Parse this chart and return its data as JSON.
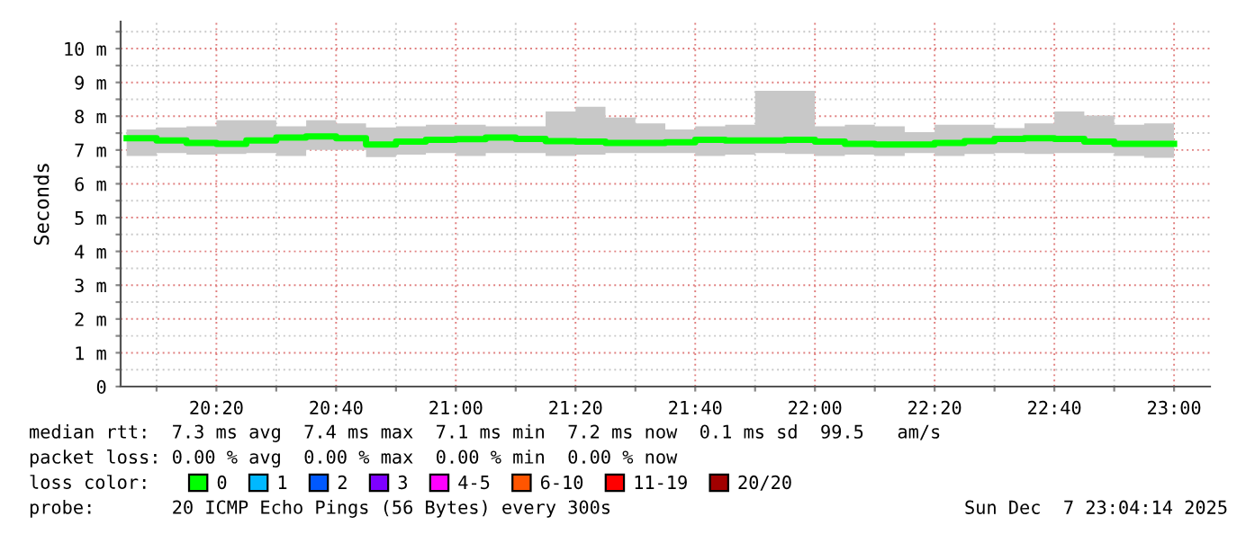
{
  "chart_data": {
    "type": "step",
    "ylabel": "Seconds",
    "legend_title": "loss color:",
    "x": [
      "2025-12-07T20:05",
      "2025-12-07T20:10",
      "2025-12-07T20:15",
      "2025-12-07T20:20",
      "2025-12-07T20:25",
      "2025-12-07T20:30",
      "2025-12-07T20:35",
      "2025-12-07T20:40",
      "2025-12-07T20:45",
      "2025-12-07T20:50",
      "2025-12-07T20:55",
      "2025-12-07T21:00",
      "2025-12-07T21:05",
      "2025-12-07T21:10",
      "2025-12-07T21:15",
      "2025-12-07T21:20",
      "2025-12-07T21:25",
      "2025-12-07T21:30",
      "2025-12-07T21:35",
      "2025-12-07T21:40",
      "2025-12-07T21:45",
      "2025-12-07T21:50",
      "2025-12-07T21:55",
      "2025-12-07T22:00",
      "2025-12-07T22:05",
      "2025-12-07T22:10",
      "2025-12-07T22:15",
      "2025-12-07T22:20",
      "2025-12-07T22:25",
      "2025-12-07T22:30",
      "2025-12-07T22:35",
      "2025-12-07T22:40",
      "2025-12-07T22:45",
      "2025-12-07T22:50",
      "2025-12-07T22:55",
      "2025-12-07T23:00"
    ],
    "series": [
      {
        "name": "0",
        "color": "#00ff00",
        "values": [
          7.35,
          7.28,
          7.21,
          7.18,
          7.28,
          7.37,
          7.4,
          7.35,
          7.16,
          7.25,
          7.3,
          7.32,
          7.37,
          7.33,
          7.26,
          7.25,
          7.21,
          7.21,
          7.23,
          7.3,
          7.28,
          7.28,
          7.3,
          7.25,
          7.18,
          7.16,
          7.16,
          7.21,
          7.26,
          7.33,
          7.35,
          7.33,
          7.25,
          7.18,
          7.18,
          7.18
        ],
        "lower": [
          6.82,
          6.91,
          6.86,
          6.88,
          6.91,
          6.82,
          7.0,
          7.0,
          6.79,
          6.86,
          6.91,
          6.82,
          6.91,
          6.91,
          6.82,
          6.86,
          6.91,
          6.91,
          6.91,
          6.82,
          6.86,
          6.91,
          6.88,
          6.82,
          6.86,
          6.82,
          6.91,
          6.82,
          6.88,
          6.91,
          6.88,
          6.91,
          6.91,
          6.82,
          6.77,
          6.77
        ],
        "upper": [
          7.61,
          7.67,
          7.7,
          7.88,
          7.88,
          7.7,
          7.88,
          7.79,
          7.67,
          7.7,
          7.75,
          7.75,
          7.7,
          7.7,
          8.14,
          8.28,
          7.96,
          7.79,
          7.61,
          7.7,
          7.75,
          8.75,
          8.75,
          7.7,
          7.75,
          7.7,
          7.53,
          7.75,
          7.75,
          7.65,
          7.79,
          8.14,
          8.02,
          7.75,
          7.79,
          7.79
        ]
      },
      {
        "name": "1",
        "color": "#00b8ff",
        "values": [
          null,
          null,
          null,
          null,
          null,
          null,
          null,
          null,
          null,
          null,
          null,
          null,
          null,
          null,
          null,
          null,
          null,
          null,
          null,
          null,
          null,
          null,
          null,
          null,
          null,
          null,
          null,
          null,
          null,
          null,
          null,
          null,
          null,
          null,
          null,
          null
        ]
      },
      {
        "name": "2",
        "color": "#0059ff",
        "values": [
          null,
          null,
          null,
          null,
          null,
          null,
          null,
          null,
          null,
          null,
          null,
          null,
          null,
          null,
          null,
          null,
          null,
          null,
          null,
          null,
          null,
          null,
          null,
          null,
          null,
          null,
          null,
          null,
          null,
          null,
          null,
          null,
          null,
          null,
          null,
          null
        ]
      },
      {
        "name": "3",
        "color": "#7e00ff",
        "values": [
          null,
          null,
          null,
          null,
          null,
          null,
          null,
          null,
          null,
          null,
          null,
          null,
          null,
          null,
          null,
          null,
          null,
          null,
          null,
          null,
          null,
          null,
          null,
          null,
          null,
          null,
          null,
          null,
          null,
          null,
          null,
          null,
          null,
          null,
          null,
          null
        ]
      },
      {
        "name": "4-5",
        "color": "#ff00ff",
        "values": [
          null,
          null,
          null,
          null,
          null,
          null,
          null,
          null,
          null,
          null,
          null,
          null,
          null,
          null,
          null,
          null,
          null,
          null,
          null,
          null,
          null,
          null,
          null,
          null,
          null,
          null,
          null,
          null,
          null,
          null,
          null,
          null,
          null,
          null,
          null,
          null
        ]
      },
      {
        "name": "6-10",
        "color": "#ff5500",
        "values": [
          null,
          null,
          null,
          null,
          null,
          null,
          null,
          null,
          null,
          null,
          null,
          null,
          null,
          null,
          null,
          null,
          null,
          null,
          null,
          null,
          null,
          null,
          null,
          null,
          null,
          null,
          null,
          null,
          null,
          null,
          null,
          null,
          null,
          null,
          null,
          null
        ]
      },
      {
        "name": "11-19",
        "color": "#ff0000",
        "values": [
          null,
          null,
          null,
          null,
          null,
          null,
          null,
          null,
          null,
          null,
          null,
          null,
          null,
          null,
          null,
          null,
          null,
          null,
          null,
          null,
          null,
          null,
          null,
          null,
          null,
          null,
          null,
          null,
          null,
          null,
          null,
          null,
          null,
          null,
          null,
          null
        ]
      },
      {
        "name": "20/20",
        "color": "#a10000",
        "values": [
          null,
          null,
          null,
          null,
          null,
          null,
          null,
          null,
          null,
          null,
          null,
          null,
          null,
          null,
          null,
          null,
          null,
          null,
          null,
          null,
          null,
          null,
          null,
          null,
          null,
          null,
          null,
          null,
          null,
          null,
          null,
          null,
          null,
          null,
          null,
          null
        ]
      }
    ],
    "xlim": [
      "2025-12-07T20:04",
      "2025-12-07T23:06"
    ],
    "xticks": [
      {
        "value": "2025-12-07T20:10",
        "label": null
      },
      {
        "value": "2025-12-07T20:20",
        "label": "20:20"
      },
      {
        "value": "2025-12-07T20:30",
        "label": null
      },
      {
        "value": "2025-12-07T20:40",
        "label": "20:40"
      },
      {
        "value": "2025-12-07T20:50",
        "label": null
      },
      {
        "value": "2025-12-07T21:00",
        "label": "21:00"
      },
      {
        "value": "2025-12-07T21:10",
        "label": null
      },
      {
        "value": "2025-12-07T21:20",
        "label": "21:20"
      },
      {
        "value": "2025-12-07T21:30",
        "label": null
      },
      {
        "value": "2025-12-07T21:40",
        "label": "21:40"
      },
      {
        "value": "2025-12-07T21:50",
        "label": null
      },
      {
        "value": "2025-12-07T22:00",
        "label": "22:00"
      },
      {
        "value": "2025-12-07T22:10",
        "label": null
      },
      {
        "value": "2025-12-07T22:20",
        "label": "22:20"
      },
      {
        "value": "2025-12-07T22:30",
        "label": null
      },
      {
        "value": "2025-12-07T22:40",
        "label": "22:40"
      },
      {
        "value": "2025-12-07T22:50",
        "label": null
      },
      {
        "value": "2025-12-07T23:00",
        "label": "23:00"
      }
    ],
    "ylim": [
      0,
      10.8
    ],
    "yticks": [
      0,
      {
        "value": 0.5,
        "label": null
      },
      {
        "value": 1,
        "label": "1 m"
      },
      {
        "value": 1.5,
        "label": null
      },
      {
        "value": 2,
        "label": "2 m"
      },
      {
        "value": 2.5,
        "label": null
      },
      {
        "value": 3,
        "label": "3 m"
      },
      {
        "value": 3.5,
        "label": null
      },
      {
        "value": 4,
        "label": "4 m"
      },
      {
        "value": 4.5,
        "label": null
      },
      {
        "value": 5,
        "label": "5 m"
      },
      {
        "value": 5.5,
        "label": null
      },
      {
        "value": 6,
        "label": "6 m"
      },
      {
        "value": 6.5,
        "label": null
      },
      {
        "value": 7,
        "label": "7 m"
      },
      {
        "value": 7.5,
        "label": null
      },
      {
        "value": 8,
        "label": "8 m"
      },
      {
        "value": 8.5,
        "label": null
      },
      {
        "value": 9,
        "label": "9 m"
      },
      {
        "value": 9.5,
        "label": null
      },
      {
        "value": 10,
        "label": "10 m"
      },
      {
        "value": 10.5,
        "label": null
      }
    ],
    "grid": true,
    "legend": "bottom",
    "annotations": [
      "median rtt:  7.3 ms avg  7.4 ms max  7.1 ms min  7.2 ms now  0.1 ms sd  99.5   am/s",
      "packet loss: 0.00 % avg  0.00 % max  0.00 % min  0.00 % now",
      "probe:       20 ICMP Echo Pings (56 Bytes) every 300s",
      "Sun Dec  7 23:04:14 2025"
    ]
  }
}
